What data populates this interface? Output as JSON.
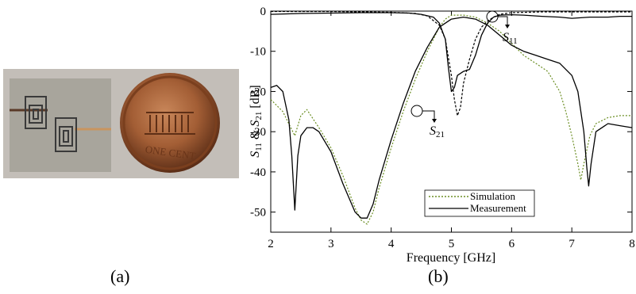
{
  "panel_a": {
    "label": "(a)",
    "photo_text": "ONE CENT"
  },
  "panel_b": {
    "label": "(b)"
  },
  "chart_data": {
    "type": "line",
    "xlabel": "Frequency [GHz]",
    "ylabel": "S11 & S21 [dB]",
    "xlim": [
      2,
      8
    ],
    "ylim": [
      -55,
      0
    ],
    "x_ticks": [
      2,
      3,
      4,
      5,
      6,
      7,
      8
    ],
    "y_ticks": [
      0,
      -10,
      -20,
      -30,
      -40,
      -50
    ],
    "x_tick_labels": [
      "2",
      "3",
      "4",
      "5",
      "6",
      "7",
      "8"
    ],
    "y_tick_labels": [
      "0",
      "-10",
      "-20",
      "-30",
      "-40",
      "-50"
    ],
    "legend": [
      "Simulation",
      "Measurement"
    ],
    "legend_position": "bottom-left",
    "grid": false,
    "annotations": [
      {
        "text": "S11",
        "x": 5.95,
        "y": -1.5
      },
      {
        "text": "S21",
        "x": 4.2,
        "y": -24.5
      }
    ],
    "series": [
      {
        "name": "Simulation",
        "style": "dotted",
        "color": "#6b8e23",
        "param": "S21",
        "x": [
          2.0,
          2.2,
          2.4,
          2.5,
          2.6,
          2.8,
          3.0,
          3.2,
          3.4,
          3.5,
          3.6,
          3.7,
          3.8,
          4.0,
          4.2,
          4.4,
          4.6,
          4.8,
          4.9,
          5.0,
          5.2,
          5.4,
          5.6,
          5.8,
          6.0,
          6.2,
          6.4,
          6.6,
          6.8,
          6.9,
          7.0,
          7.1,
          7.15,
          7.2,
          7.3,
          7.4,
          7.6,
          7.8,
          8.0
        ],
        "y": [
          -22,
          -25,
          -31,
          -26,
          -24.5,
          -29,
          -34,
          -41,
          -49,
          -52,
          -53,
          -50,
          -44,
          -34,
          -25,
          -17,
          -10,
          -4,
          -2,
          -1,
          -1,
          -1.5,
          -3,
          -5,
          -8,
          -11,
          -13,
          -15,
          -20,
          -25,
          -31,
          -38,
          -42,
          -38,
          -31,
          -28,
          -26.5,
          -26,
          -26
        ]
      },
      {
        "name": "Simulation",
        "style": "dashed",
        "color": "#000000",
        "param": "S11",
        "x": [
          2.0,
          3.0,
          4.0,
          4.4,
          4.6,
          4.8,
          4.9,
          5.0,
          5.05,
          5.1,
          5.15,
          5.2,
          5.3,
          5.4,
          5.5,
          5.6,
          5.7,
          5.8,
          6.0,
          6.5,
          7.0,
          7.5,
          8.0
        ],
        "y": [
          -0.1,
          -0.1,
          -0.3,
          -0.6,
          -1.2,
          -3.5,
          -7,
          -16,
          -22,
          -26,
          -24,
          -18,
          -12,
          -7,
          -4,
          -2.5,
          -1.5,
          -0.8,
          -0.4,
          -0.2,
          -0.2,
          -0.2,
          -0.2
        ]
      },
      {
        "name": "Measurement",
        "style": "solid",
        "color": "#000000",
        "param": "S21",
        "x": [
          2.0,
          2.1,
          2.2,
          2.3,
          2.35,
          2.4,
          2.45,
          2.5,
          2.6,
          2.7,
          2.8,
          3.0,
          3.2,
          3.4,
          3.5,
          3.6,
          3.7,
          3.8,
          4.0,
          4.2,
          4.4,
          4.6,
          4.8,
          5.0,
          5.2,
          5.4,
          5.6,
          5.8,
          6.0,
          6.2,
          6.4,
          6.6,
          6.8,
          7.0,
          7.1,
          7.2,
          7.25,
          7.28,
          7.32,
          7.4,
          7.6,
          7.8,
          8.0
        ],
        "y": [
          -19,
          -18.5,
          -20,
          -27,
          -36,
          -49.5,
          -36,
          -31,
          -29,
          -29,
          -30,
          -35,
          -43,
          -50,
          -51.5,
          -51.5,
          -48,
          -42,
          -32,
          -23,
          -15,
          -9,
          -4,
          -2,
          -1.5,
          -2,
          -3.5,
          -6,
          -8.5,
          -10,
          -11,
          -12,
          -13,
          -16,
          -20,
          -30,
          -39,
          -43.5,
          -38,
          -30,
          -28,
          -28.5,
          -29
        ]
      },
      {
        "name": "Measurement",
        "style": "solid",
        "color": "#000000",
        "param": "S11",
        "x": [
          2.0,
          2.5,
          3.0,
          3.5,
          4.0,
          4.3,
          4.5,
          4.7,
          4.8,
          4.9,
          4.95,
          5.0,
          5.05,
          5.1,
          5.2,
          5.3,
          5.4,
          5.5,
          5.6,
          5.7,
          5.8,
          6.0,
          6.2,
          6.5,
          6.8,
          7.0,
          7.3,
          7.6,
          7.8,
          8.0
        ],
        "y": [
          -0.8,
          -0.6,
          -0.5,
          -0.4,
          -0.4,
          -0.5,
          -0.8,
          -1.5,
          -3,
          -7,
          -14,
          -20,
          -19,
          -16,
          -15,
          -14.5,
          -11,
          -6,
          -3,
          -1.5,
          -1,
          -0.9,
          -1,
          -1.3,
          -1.5,
          -1.8,
          -1.5,
          -1.5,
          -1.3,
          -1.3
        ]
      }
    ]
  }
}
